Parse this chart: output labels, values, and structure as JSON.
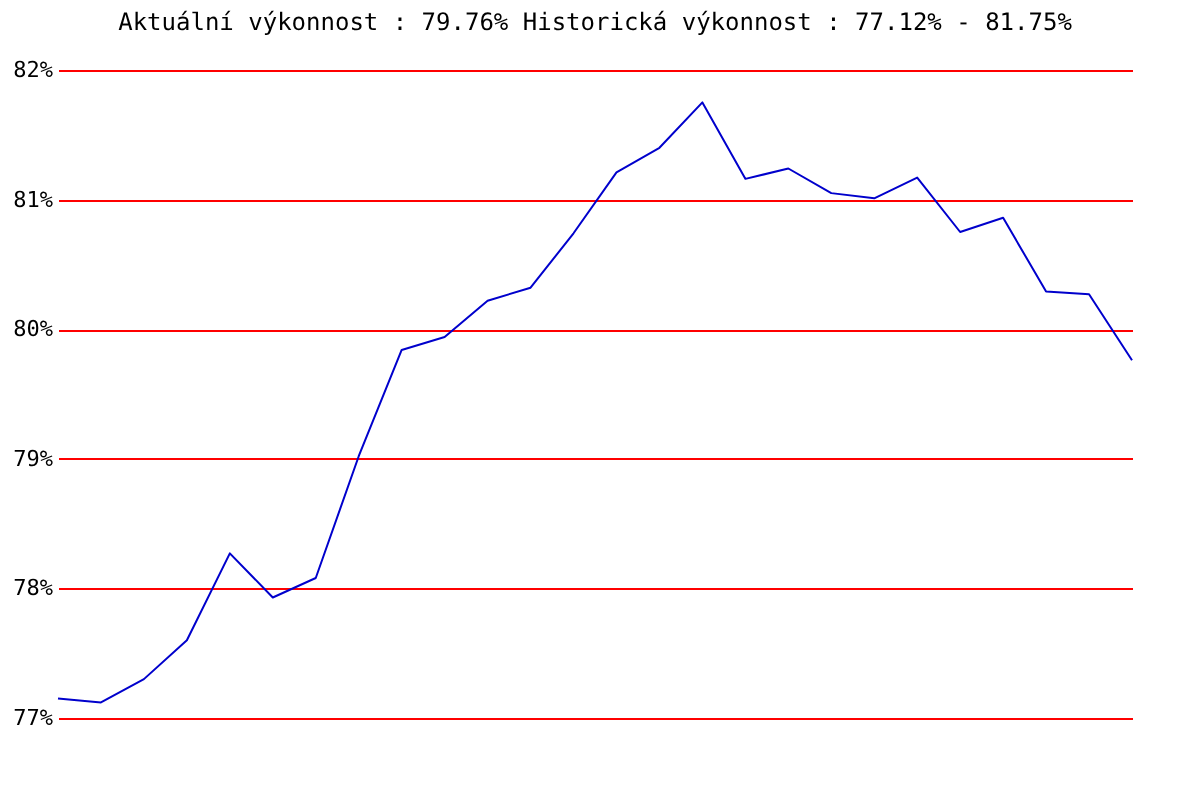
{
  "chart_data": {
    "type": "line",
    "title": "Aktuální výkonnost : 79.76%  Historická výkonnost : 77.12% - 81.75%",
    "categories": [
      null,
      null,
      null,
      null,
      null,
      null,
      null,
      null,
      null,
      null,
      null,
      null,
      null,
      null,
      null,
      null,
      null,
      null,
      null,
      null,
      null,
      null,
      null,
      null,
      null,
      null
    ],
    "series": [
      {
        "color": "#0000cc",
        "values": [
          77.15,
          77.12,
          77.3,
          77.6,
          78.27,
          77.93,
          78.08,
          79.02,
          79.84,
          79.94,
          80.22,
          80.32,
          80.74,
          81.21,
          81.4,
          81.75,
          81.16,
          81.24,
          81.05,
          81.01,
          81.17,
          80.75,
          80.86,
          80.29,
          80.27,
          79.76
        ]
      }
    ],
    "ylim": [
      77,
      82
    ],
    "yticks": [
      {
        "value": 77,
        "label": "77%"
      },
      {
        "value": 78,
        "label": "78%"
      },
      {
        "value": 79,
        "label": "79%"
      },
      {
        "value": 80,
        "label": "80%"
      },
      {
        "value": 81,
        "label": "81%"
      },
      {
        "value": 82,
        "label": "82%"
      }
    ],
    "grid": "y",
    "tick_labels": "y"
  }
}
